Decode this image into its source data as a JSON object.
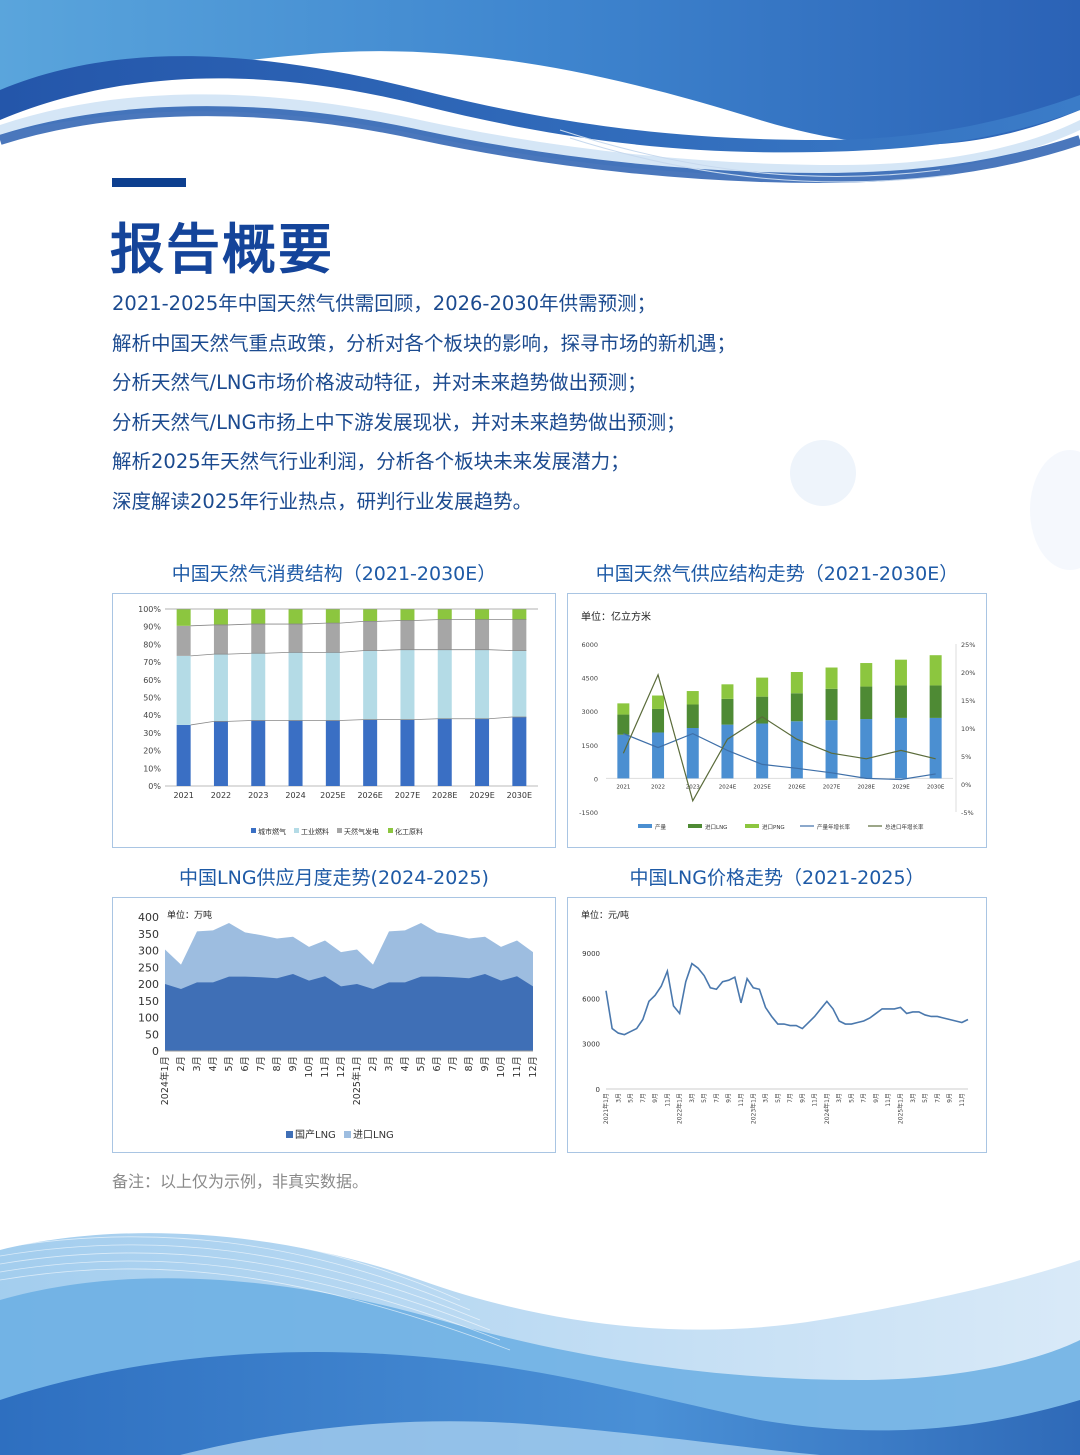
{
  "page": {
    "title": "报告概要",
    "summary": [
      "2021-2025年中国天然气供需回顾，2026-2030年供需预测；",
      "解析中国天然气重点政策，分析对各个板块的影响，探寻市场的新机遇；",
      "分析天然气/LNG市场价格波动特征，并对未来趋势做出预测；",
      "分析天然气/LNG市扬上中下游发展现状，并对未来趋势做出预测；",
      "解析2025年天然气行业利润，分析各个板块未来发展潜力；",
      "深度解读2025年行业热点，研判行业发展趋势。"
    ],
    "note": "备注：以上仅为示例，非真实数据。",
    "colors": {
      "title": "#14449a",
      "text": "#1b4a8f",
      "accent_bar": "#0d3f8f",
      "chart_border": "#a9c5e3"
    }
  },
  "charts": {
    "consumption": {
      "title": "中国天然气消费结构（2021-2030E）",
      "y_ticks": [
        "100%",
        "90%",
        "80%",
        "70%",
        "60%",
        "50%",
        "40%",
        "30%",
        "20%",
        "10%",
        "0%"
      ],
      "legend": [
        "城市燃气",
        "工业燃料",
        "天然气发电",
        "化工原料"
      ]
    },
    "supply": {
      "title": "中国天然气供应结构走势（2021-2030E）",
      "unit": "单位：亿立方米",
      "y_left_ticks": [
        "6000",
        "4500",
        "3000",
        "1500",
        "0",
        "-1500"
      ],
      "y_right_ticks": [
        "25%",
        "20%",
        "15%",
        "10%",
        "5%",
        "0%",
        "-5%"
      ],
      "legend": [
        "产量",
        "进口LNG",
        "进口PNG",
        "产量年增长率",
        "总进口年增长率"
      ]
    },
    "lng_monthly": {
      "title": "中国LNG供应月度走势(2024-2025)",
      "unit": "单位：万吨",
      "y_ticks": [
        "400",
        "350",
        "300",
        "250",
        "200",
        "150",
        "100",
        "50",
        "0"
      ],
      "legend": [
        "国产LNG",
        "进口LNG"
      ]
    },
    "lng_price": {
      "title": "中国LNG价格走势（2021-2025）",
      "unit": "单位：元/吨",
      "y_ticks": [
        "9000",
        "6000",
        "3000",
        "0"
      ]
    }
  },
  "chart_data": [
    {
      "type": "bar",
      "stacked": true,
      "title": "中国天然气消费结构（2021-2030E）",
      "categories": [
        "2021",
        "2022",
        "2023",
        "2024",
        "2025E",
        "2026E",
        "2027E",
        "2028E",
        "2029E",
        "2030E"
      ],
      "series": [
        {
          "name": "城市燃气",
          "color": "#3a6fc4",
          "values": [
            34.5,
            36.5,
            37,
            37,
            37,
            37.5,
            37.5,
            38,
            38,
            39
          ]
        },
        {
          "name": "工业燃料",
          "color": "#b4dbe6",
          "values": [
            39,
            38,
            38,
            38.5,
            38.5,
            39,
            39.5,
            39,
            39,
            37.5
          ]
        },
        {
          "name": "天然气发电",
          "color": "#a6a6a6",
          "values": [
            17,
            16.5,
            16.5,
            16,
            16.5,
            16.5,
            16.5,
            17,
            17,
            17.5
          ]
        },
        {
          "name": "化工原料",
          "color": "#8cc63f",
          "values": [
            9.5,
            9,
            8.5,
            8.5,
            8,
            7,
            6.5,
            6,
            6,
            6
          ]
        }
      ],
      "ylabel": "",
      "xlabel": "",
      "ylim": [
        0,
        100
      ],
      "y_unit": "%",
      "legend_position": "bottom",
      "grid": false
    },
    {
      "type": "bar",
      "stacked": true,
      "title": "中国天然气供应结构走势（2021-2030E）",
      "unit": "亿立方米",
      "categories": [
        "2021",
        "2022",
        "2023",
        "2024E",
        "2025E",
        "2026E",
        "2027E",
        "2028E",
        "2029E",
        "2030E"
      ],
      "series": [
        {
          "name": "产量",
          "color": "#4b8fd1",
          "type": "bar",
          "axis": "left",
          "values": [
            1950,
            2050,
            2250,
            2400,
            2450,
            2550,
            2600,
            2650,
            2700,
            2700
          ]
        },
        {
          "name": "进口LNG",
          "color": "#4e8a34",
          "type": "bar",
          "axis": "left",
          "values": [
            900,
            1050,
            1050,
            1150,
            1200,
            1250,
            1400,
            1450,
            1450,
            1450
          ]
        },
        {
          "name": "进口PNG",
          "color": "#8cc63f",
          "type": "bar",
          "axis": "left",
          "values": [
            500,
            600,
            600,
            650,
            850,
            950,
            950,
            1050,
            1150,
            1350
          ]
        },
        {
          "name": "产量年增长率",
          "color": "#3e6fa8",
          "type": "line",
          "axis": "right",
          "values": [
            9,
            6.5,
            9,
            6,
            3.5,
            2.8,
            2,
            1,
            0.8,
            1.8
          ]
        },
        {
          "name": "总进口年增长率",
          "color": "#5a6b3a",
          "type": "line",
          "axis": "right",
          "values": [
            5.5,
            19.5,
            -3,
            8,
            12,
            8,
            5.5,
            4.5,
            6,
            4.5
          ]
        }
      ],
      "y_left_lim": [
        -1500,
        6000
      ],
      "y_right_lim": [
        -5,
        25
      ],
      "legend_position": "bottom",
      "grid": false
    },
    {
      "type": "area",
      "stacked": true,
      "title": "中国LNG供应月度走势(2024-2025)",
      "unit": "万吨",
      "categories": [
        "2024年1月",
        "2月",
        "3月",
        "4月",
        "5月",
        "6月",
        "7月",
        "8月",
        "9月",
        "10月",
        "11月",
        "12月",
        "2025年1月",
        "2月",
        "3月",
        "4月",
        "5月",
        "6月",
        "7月",
        "8月",
        "9月",
        "10月",
        "11月",
        "12月"
      ],
      "series": [
        {
          "name": "国产LNG",
          "color": "#3f6fb6",
          "values": [
            200,
            185,
            205,
            205,
            222,
            222,
            220,
            217,
            230,
            210,
            223,
            193,
            200,
            185,
            205,
            205,
            222,
            222,
            220,
            217,
            230,
            210,
            223,
            193
          ]
        },
        {
          "name": "进口LNG",
          "color": "#9dbde0",
          "values": [
            103,
            73,
            152,
            155,
            160,
            132,
            126,
            119,
            111,
            101,
            107,
            102,
            103,
            73,
            152,
            155,
            160,
            132,
            126,
            119,
            111,
            101,
            107,
            102
          ]
        }
      ],
      "totals": [
        303,
        258,
        357,
        360,
        382,
        354,
        346,
        336,
        341,
        311,
        330,
        295,
        303,
        258,
        357,
        360,
        382,
        354,
        346,
        336,
        341,
        311,
        330,
        295
      ],
      "ylim": [
        0,
        400
      ],
      "legend_position": "bottom",
      "grid": false
    },
    {
      "type": "line",
      "title": "中国LNG价格走势（2021-2025）",
      "unit": "元/吨",
      "x_tick_labels": [
        "2021年1月",
        "3月",
        "5月",
        "7月",
        "9月",
        "11月",
        "2022年1月",
        "3月",
        "5月",
        "7月",
        "9月",
        "11月",
        "2023年1月",
        "3月",
        "5月",
        "7月",
        "9月",
        "11月",
        "2024年1月",
        "3月",
        "5月",
        "7月",
        "9月",
        "11月",
        "2025年1月",
        "3月",
        "5月",
        "7月",
        "9月",
        "11月"
      ],
      "series": [
        {
          "name": "LNG价格",
          "color": "#4a78ad",
          "values": [
            6500,
            4000,
            3700,
            3600,
            3800,
            4000,
            4600,
            5800,
            6200,
            6800,
            7800,
            5500,
            5000,
            7100,
            8300,
            8000,
            7500,
            6700,
            6600,
            7100,
            7200,
            7400,
            5700,
            7300,
            6700,
            6600,
            5400,
            4800,
            4300,
            4300,
            4200,
            4200,
            4000,
            4400,
            4800,
            5300,
            5800,
            5300,
            4500,
            4300,
            4300,
            4400,
            4500,
            4700,
            5000,
            5300,
            5300,
            5300,
            5400,
            5000,
            5100,
            5100,
            4900,
            4800,
            4800,
            4700,
            4600,
            4500,
            4400,
            4600
          ]
        }
      ],
      "ylim": [
        0,
        9000
      ],
      "grid": false
    }
  ]
}
